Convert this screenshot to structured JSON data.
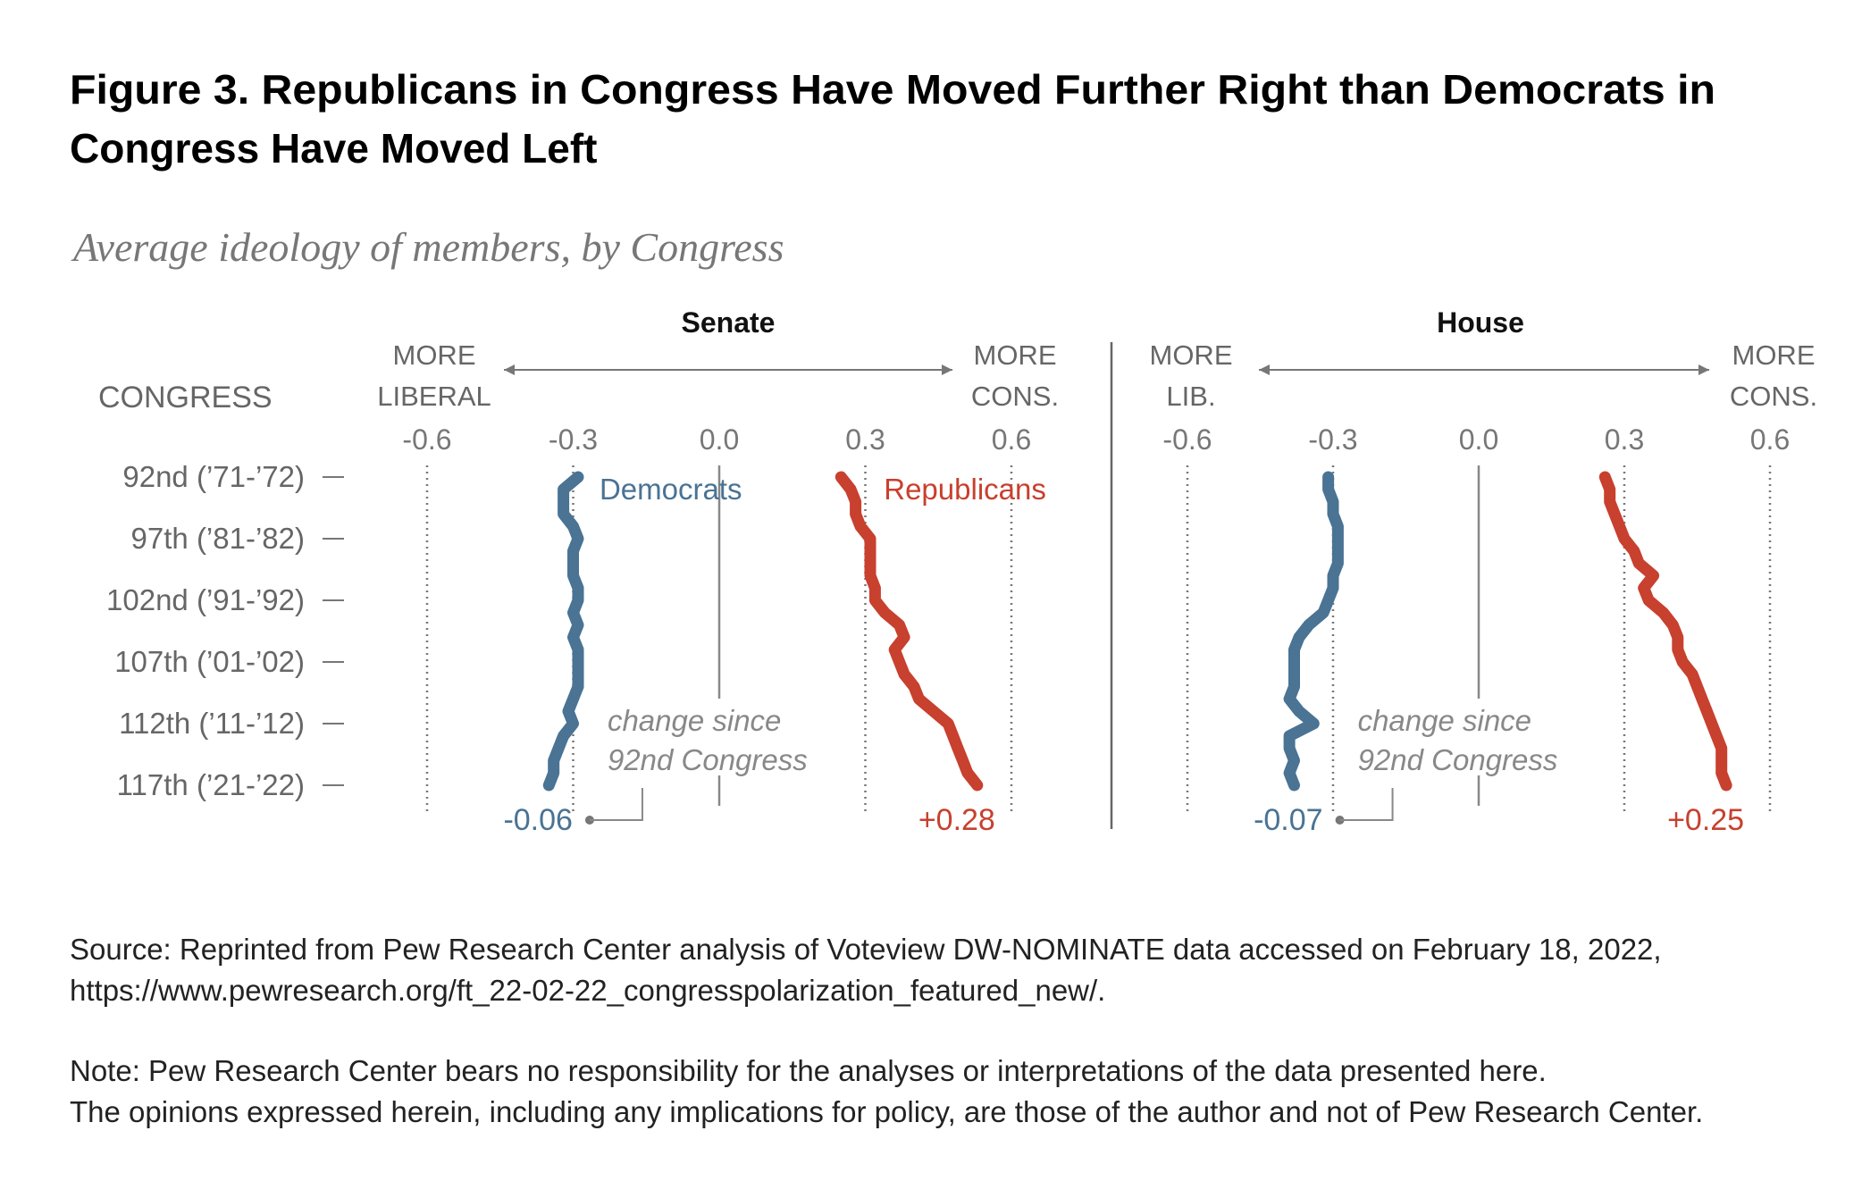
{
  "title": [
    "Figure 3. Republicans in Congress Have Moved Further Right than Democrats in",
    "Congress Have Moved Left"
  ],
  "subtitle": "Average ideology of members, by Congress",
  "source": [
    "Source: Reprinted from Pew Research Center analysis of Voteview DW-NOMINATE data accessed on February 18, 2022,",
    "https://www.pewresearch.org/ft_22-02-22_congresspolarization_featured_new/."
  ],
  "note": [
    "Note: Pew Research Center bears no responsibility for the analyses or interpretations of the data presented here.",
    "The opinions expressed herein, including any implications for policy, are those of the author and not of Pew Research Center."
  ],
  "chart_data": [
    {
      "type": "line",
      "title": "Senate",
      "y_axis_label": "CONGRESS",
      "left_label": [
        "MORE",
        "LIBERAL"
      ],
      "right_label": [
        "MORE",
        "CONS."
      ],
      "annotation": [
        "change since",
        "92nd Congress"
      ],
      "xlim": [
        -0.6,
        0.6
      ],
      "xticks": [
        -0.6,
        -0.3,
        {
          "value": 0,
          "label": "0.0"
        },
        0.3,
        0.6
      ],
      "grid": true,
      "ylim": [
        92,
        117
      ],
      "yticks": [
        {
          "value": 92,
          "label": "92nd (’71-’72)"
        },
        {
          "value": 97,
          "label": "97th (’81-’82)"
        },
        {
          "value": 102,
          "label": "102nd (’91-’92)"
        },
        {
          "value": 107,
          "label": "107th (’01-’02)"
        },
        {
          "value": 112,
          "label": "112th (’11-’12)"
        },
        {
          "value": 117,
          "label": "117th (’21-’22)"
        }
      ],
      "y": [
        92,
        93,
        94,
        95,
        96,
        97,
        98,
        99,
        100,
        101,
        102,
        103,
        104,
        105,
        106,
        107,
        108,
        109,
        110,
        111,
        112,
        113,
        114,
        115,
        116,
        117
      ],
      "series": [
        {
          "name": "Democrats",
          "color": "#4a7394",
          "change": -0.06,
          "values": [
            -0.29,
            -0.32,
            -0.32,
            -0.32,
            -0.3,
            -0.29,
            -0.3,
            -0.3,
            -0.3,
            -0.29,
            -0.29,
            -0.3,
            -0.29,
            -0.3,
            -0.29,
            -0.29,
            -0.29,
            -0.29,
            -0.3,
            -0.31,
            -0.3,
            -0.32,
            -0.33,
            -0.34,
            -0.34,
            -0.35
          ]
        },
        {
          "name": "Republicans",
          "color": "#c8402e",
          "change": {
            "value": 0.28,
            "label": "+0.28"
          },
          "values": [
            0.25,
            0.27,
            0.28,
            0.28,
            0.29,
            0.31,
            0.31,
            0.31,
            0.31,
            0.32,
            0.32,
            0.34,
            0.37,
            0.38,
            0.36,
            0.37,
            0.38,
            0.4,
            0.41,
            0.44,
            0.47,
            0.48,
            0.49,
            0.5,
            0.51,
            0.53
          ]
        }
      ]
    },
    {
      "type": "line",
      "title": "House",
      "left_label": [
        "MORE",
        "LIB."
      ],
      "right_label": [
        "MORE",
        "CONS."
      ],
      "annotation": [
        "change since",
        "92nd Congress"
      ],
      "xlim": [
        -0.6,
        0.6
      ],
      "xticks": [
        -0.6,
        -0.3,
        {
          "value": 0,
          "label": "0.0"
        },
        0.3,
        0.6
      ],
      "grid": true,
      "ylim": [
        92,
        117
      ],
      "y": [
        92,
        93,
        94,
        95,
        96,
        97,
        98,
        99,
        100,
        101,
        102,
        103,
        104,
        105,
        106,
        107,
        108,
        109,
        110,
        111,
        112,
        113,
        114,
        115,
        116,
        117
      ],
      "series": [
        {
          "color": "#4a7394",
          "change": -0.07,
          "values": [
            -0.31,
            -0.31,
            -0.3,
            -0.3,
            -0.29,
            -0.29,
            -0.29,
            -0.29,
            -0.3,
            -0.3,
            -0.31,
            -0.32,
            -0.35,
            -0.37,
            -0.38,
            -0.38,
            -0.38,
            -0.38,
            -0.39,
            -0.37,
            -0.34,
            -0.39,
            -0.39,
            -0.38,
            -0.39,
            -0.38
          ]
        },
        {
          "color": "#c8402e",
          "change": {
            "value": 0.25,
            "label": "+0.25"
          },
          "values": [
            0.26,
            0.27,
            0.27,
            0.28,
            0.29,
            0.3,
            0.32,
            0.33,
            0.36,
            0.34,
            0.35,
            0.38,
            0.4,
            0.41,
            0.41,
            0.42,
            0.44,
            0.45,
            0.46,
            0.47,
            0.48,
            0.49,
            0.5,
            0.5,
            0.5,
            0.51
          ]
        }
      ]
    }
  ]
}
